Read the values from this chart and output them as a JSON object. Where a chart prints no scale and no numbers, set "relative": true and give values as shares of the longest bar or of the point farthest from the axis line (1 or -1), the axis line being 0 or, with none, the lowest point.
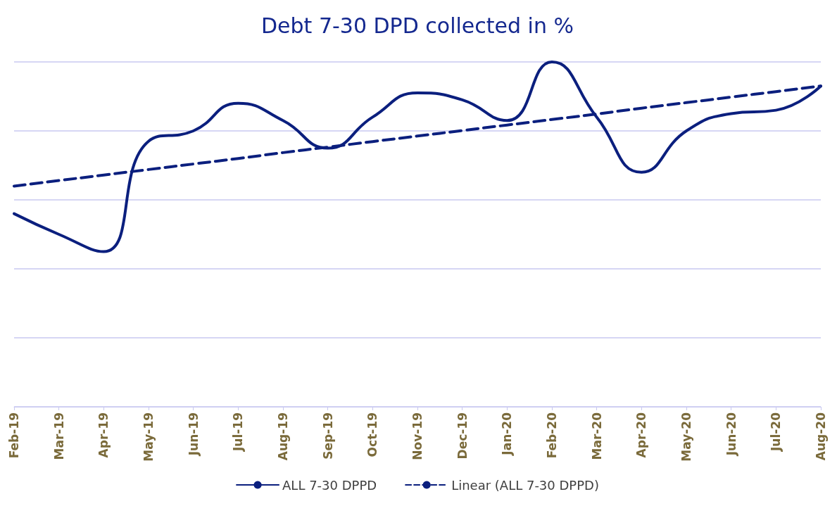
{
  "chart_data": {
    "type": "line",
    "title": "Debt 7-30 DPD collected in %",
    "relative": true,
    "grid": "y",
    "legend": "bottom",
    "marker": "none",
    "categories": [
      "Feb-19",
      "Mar-19",
      "Apr-19",
      "May-19",
      "Jun-19",
      "Jul-19",
      "Aug-19",
      "Sep-19",
      "Oct-19",
      "Nov-19",
      "Dec-19",
      "Jan-20",
      "Feb-20",
      "Mar-20",
      "Apr-20",
      "May-20",
      "Jun-20",
      "Jul-20",
      "Aug-20"
    ],
    "series": [
      {
        "name": "ALL 7-30 DPPD",
        "color": "#0b1f7e",
        "line_style": "solid",
        "values": [
          0.56,
          0.5,
          0.45,
          0.77,
          0.8,
          0.88,
          0.83,
          0.75,
          0.84,
          0.91,
          0.89,
          0.83,
          1,
          0.84,
          0.68,
          0.8,
          0.85,
          0.86,
          0.93
        ]
      },
      {
        "name": "Linear (ALL 7-30 DPPD)",
        "color": "#0b1f7e",
        "line_style": "dashed",
        "values": [
          0.64,
          0.656,
          0.672,
          0.688,
          0.704,
          0.72,
          0.737,
          0.753,
          0.769,
          0.785,
          0.801,
          0.817,
          0.833,
          0.849,
          0.866,
          0.882,
          0.898,
          0.914,
          0.93
        ]
      }
    ]
  }
}
